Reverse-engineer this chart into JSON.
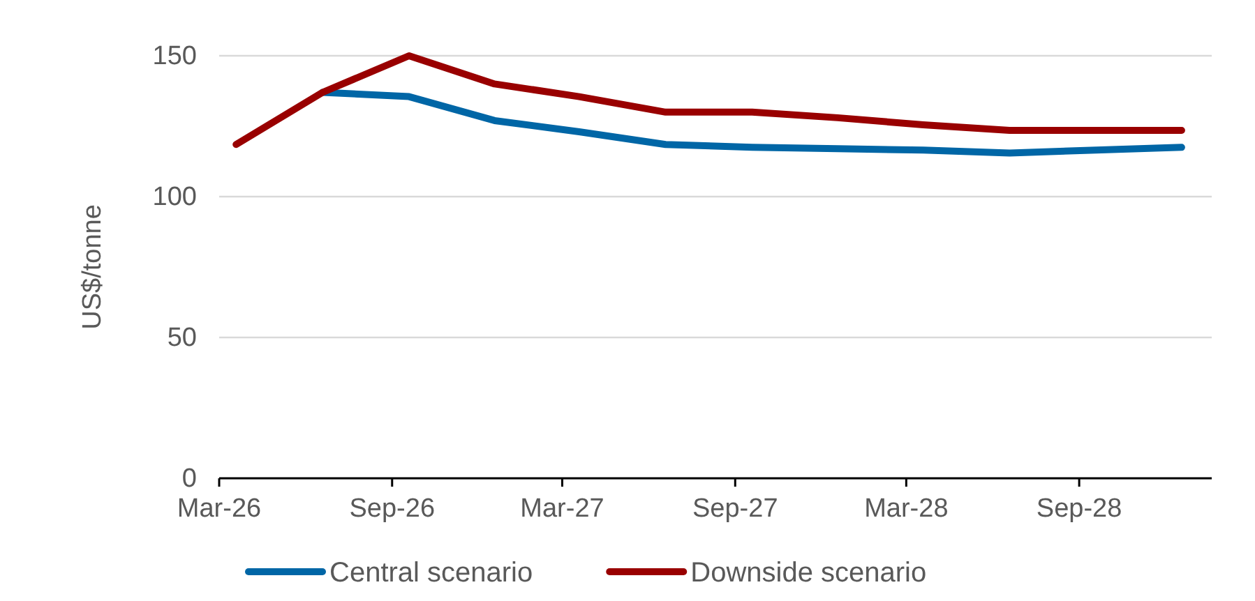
{
  "chart_data": {
    "type": "line",
    "ylabel": "US$/tonne",
    "x": [
      "2026-03-19",
      "2026-06-19",
      "2026-09-19",
      "2026-12-19",
      "2027-03-19",
      "2027-06-19",
      "2027-09-19",
      "2027-12-19",
      "2028-03-19",
      "2028-06-19",
      "2028-09-19",
      "2028-12-19"
    ],
    "series": [
      {
        "name": "Central scenario",
        "color": "#0066a6",
        "values": [
          null,
          137,
          135.5,
          127,
          123,
          118.5,
          117.5,
          117,
          116.5,
          115.5,
          116.5,
          117.5
        ]
      },
      {
        "name": "Downside scenario",
        "color": "#990000",
        "values": [
          118.5,
          137,
          150,
          140,
          135.5,
          130,
          130,
          128,
          125.5,
          123.5,
          123.5,
          123.5
        ]
      }
    ],
    "xlim": [
      "2026-03-01",
      "2029-01-20"
    ],
    "xticks": [
      {
        "value": "2026-03-01",
        "label": "Mar-26"
      },
      {
        "value": "2026-09-01",
        "label": "Sep-26"
      },
      {
        "value": "2027-03-01",
        "label": "Mar-27"
      },
      {
        "value": "2027-09-01",
        "label": "Sep-27"
      },
      {
        "value": "2028-03-01",
        "label": "Mar-28"
      },
      {
        "value": "2028-09-01",
        "label": "Sep-28"
      }
    ],
    "ylim": [
      0,
      150
    ],
    "yticks": [
      0,
      50,
      100,
      150
    ],
    "grid": "y",
    "legend": "bottom",
    "marker": "none",
    "line_style": "solid"
  }
}
